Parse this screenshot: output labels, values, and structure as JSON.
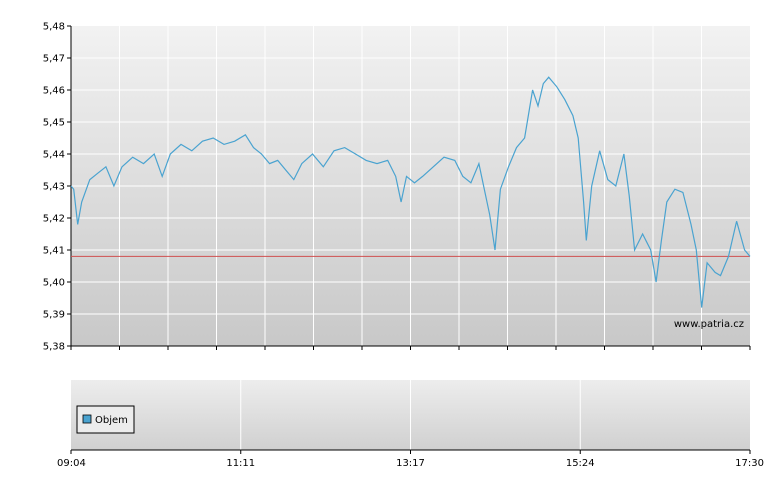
{
  "watermark": "www.patria.cz",
  "legend": {
    "label": "Objem"
  },
  "colors": {
    "price_line": "#4aa3d0",
    "reference_line": "#d05050",
    "legend_swatch": "#4aa3d0",
    "grid": "#ffffff",
    "axis": "#000000"
  },
  "chart_data": {
    "type": "line",
    "title": "",
    "xlabel": "",
    "ylabel": "",
    "ylim": [
      5.38,
      5.48
    ],
    "y_ticks": [
      "5,48",
      "5,47",
      "5,46",
      "5,45",
      "5,44",
      "5,43",
      "5,42",
      "5,41",
      "5,40",
      "5,39",
      "5,38"
    ],
    "x_ticks": [
      "09:04",
      "11:11",
      "13:17",
      "15:24",
      "17:30"
    ],
    "x_range": [
      "09:04",
      "17:30"
    ],
    "reference_line": 5.408,
    "series": [
      {
        "points": [
          [
            "09:04",
            5.43
          ],
          [
            "09:06",
            5.429
          ],
          [
            "09:09",
            5.418
          ],
          [
            "09:12",
            5.425
          ],
          [
            "09:18",
            5.432
          ],
          [
            "09:24",
            5.434
          ],
          [
            "09:30",
            5.436
          ],
          [
            "09:36",
            5.43
          ],
          [
            "09:42",
            5.436
          ],
          [
            "09:50",
            5.439
          ],
          [
            "09:58",
            5.437
          ],
          [
            "10:06",
            5.44
          ],
          [
            "10:12",
            5.433
          ],
          [
            "10:18",
            5.44
          ],
          [
            "10:26",
            5.443
          ],
          [
            "10:34",
            5.441
          ],
          [
            "10:42",
            5.444
          ],
          [
            "10:50",
            5.445
          ],
          [
            "10:58",
            5.443
          ],
          [
            "11:06",
            5.444
          ],
          [
            "11:14",
            5.446
          ],
          [
            "11:20",
            5.442
          ],
          [
            "11:26",
            5.44
          ],
          [
            "11:32",
            5.437
          ],
          [
            "11:38",
            5.438
          ],
          [
            "11:44",
            5.435
          ],
          [
            "11:50",
            5.432
          ],
          [
            "11:56",
            5.437
          ],
          [
            "12:04",
            5.44
          ],
          [
            "12:12",
            5.436
          ],
          [
            "12:20",
            5.441
          ],
          [
            "12:28",
            5.442
          ],
          [
            "12:36",
            5.44
          ],
          [
            "12:44",
            5.438
          ],
          [
            "12:52",
            5.437
          ],
          [
            "13:00",
            5.438
          ],
          [
            "13:06",
            5.433
          ],
          [
            "13:10",
            5.425
          ],
          [
            "13:14",
            5.433
          ],
          [
            "13:20",
            5.431
          ],
          [
            "13:26",
            5.433
          ],
          [
            "13:34",
            5.436
          ],
          [
            "13:42",
            5.439
          ],
          [
            "13:50",
            5.438
          ],
          [
            "13:56",
            5.433
          ],
          [
            "14:02",
            5.431
          ],
          [
            "14:08",
            5.437
          ],
          [
            "14:12",
            5.429
          ],
          [
            "14:16",
            5.421
          ],
          [
            "14:20",
            5.41
          ],
          [
            "14:24",
            5.429
          ],
          [
            "14:30",
            5.436
          ],
          [
            "14:36",
            5.442
          ],
          [
            "14:42",
            5.445
          ],
          [
            "14:48",
            5.46
          ],
          [
            "14:52",
            5.455
          ],
          [
            "14:56",
            5.462
          ],
          [
            "15:00",
            5.464
          ],
          [
            "15:06",
            5.461
          ],
          [
            "15:12",
            5.457
          ],
          [
            "15:18",
            5.452
          ],
          [
            "15:22",
            5.445
          ],
          [
            "15:26",
            5.425
          ],
          [
            "15:28",
            5.413
          ],
          [
            "15:32",
            5.43
          ],
          [
            "15:38",
            5.441
          ],
          [
            "15:44",
            5.432
          ],
          [
            "15:50",
            5.43
          ],
          [
            "15:56",
            5.44
          ],
          [
            "16:00",
            5.427
          ],
          [
            "16:04",
            5.41
          ],
          [
            "16:10",
            5.415
          ],
          [
            "16:16",
            5.41
          ],
          [
            "16:20",
            5.4
          ],
          [
            "16:24",
            5.413
          ],
          [
            "16:28",
            5.425
          ],
          [
            "16:34",
            5.429
          ],
          [
            "16:40",
            5.428
          ],
          [
            "16:46",
            5.418
          ],
          [
            "16:50",
            5.41
          ],
          [
            "16:54",
            5.392
          ],
          [
            "16:58",
            5.406
          ],
          [
            "17:04",
            5.403
          ],
          [
            "17:08",
            5.402
          ],
          [
            "17:14",
            5.408
          ],
          [
            "17:20",
            5.419
          ],
          [
            "17:26",
            5.41
          ],
          [
            "17:30",
            5.408
          ]
        ]
      }
    ]
  }
}
